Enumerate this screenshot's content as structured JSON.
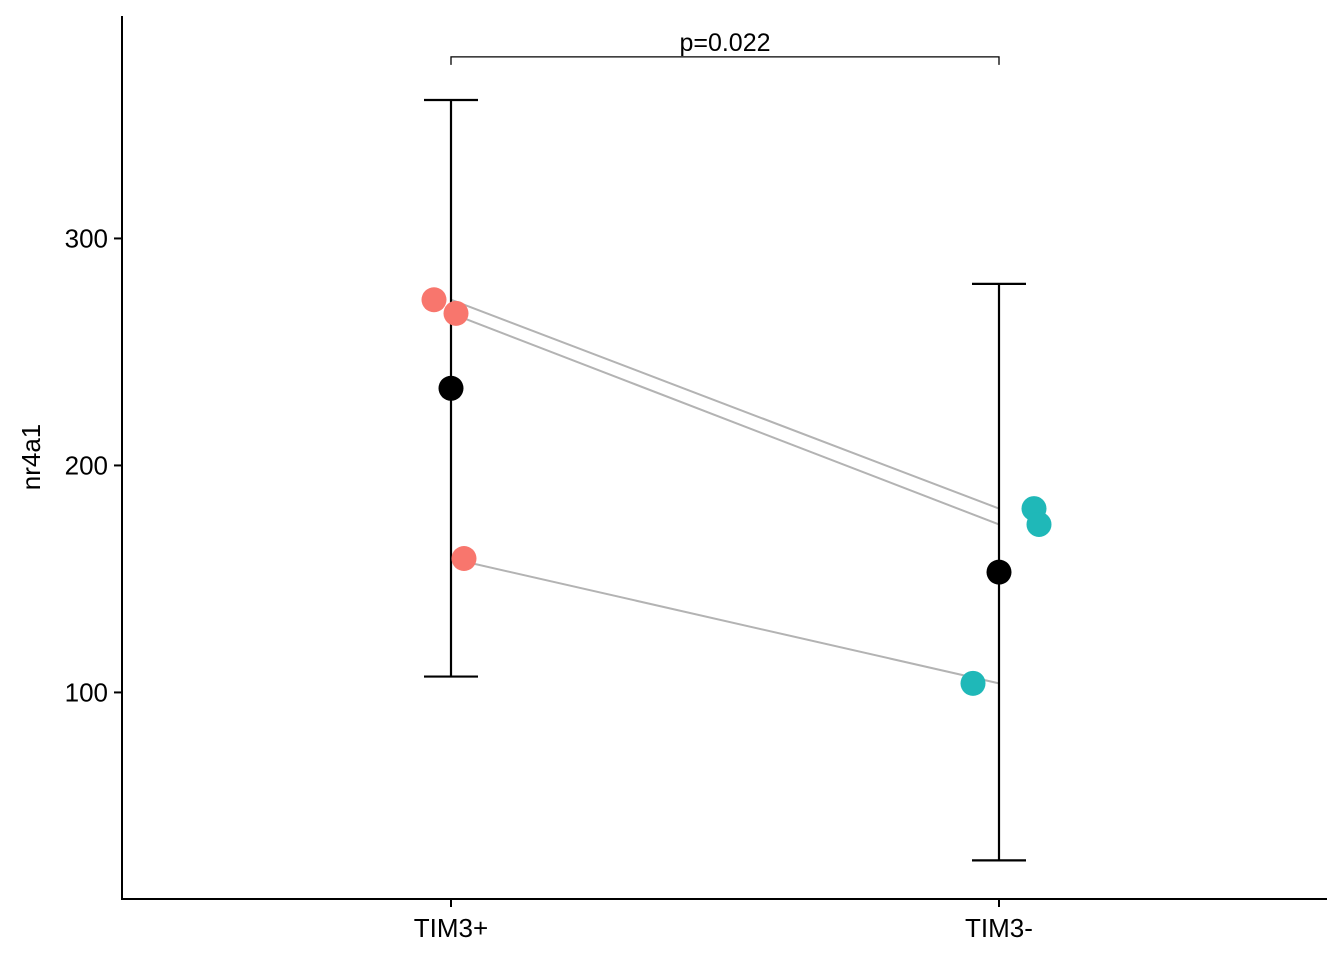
{
  "chart_data": {
    "type": "scatter",
    "ylabel": "nr4a1",
    "xlabel": "",
    "categories": [
      "TIM3+",
      "TIM3-"
    ],
    "ylim": [
      9,
      398
    ],
    "yticks": [
      100,
      200,
      300
    ],
    "ytick_labels": [
      "100",
      "200",
      "300"
    ],
    "grid": false,
    "legend": "none",
    "series": [
      {
        "category": "TIM3+",
        "color": "#F8766D",
        "points": [
          273,
          267,
          159
        ]
      },
      {
        "category": "TIM3-",
        "color": "#1FB8B8",
        "points": [
          181,
          174,
          104
        ]
      }
    ],
    "pairs": [
      [
        273,
        181
      ],
      [
        267,
        174
      ],
      [
        159,
        104
      ]
    ],
    "summary": [
      {
        "category": "TIM3+",
        "mean": 234,
        "lower": 107,
        "upper": 361
      },
      {
        "category": "TIM3-",
        "mean": 153,
        "lower": 26,
        "upper": 280
      }
    ],
    "annotation": {
      "text": "p=0.022",
      "y": 380
    },
    "colors": {
      "pair_line": "#B3B3B3",
      "summary_point": "#000000"
    }
  }
}
